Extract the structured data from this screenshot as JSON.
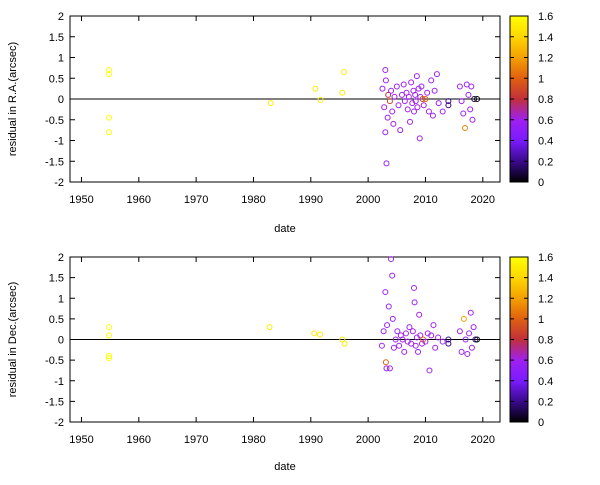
{
  "chart_data": [
    {
      "type": "scatter",
      "title": "",
      "xlabel": "date",
      "ylabel": "residual in R.A.(arcsec)",
      "xlim": [
        1948,
        2023
      ],
      "ylim": [
        -2,
        2
      ],
      "xticks": [
        "1950",
        "1960",
        "1970",
        "1980",
        "1990",
        "2000",
        "2010",
        "2020"
      ],
      "yticks": [
        "2",
        "1.5",
        "1",
        "0.5",
        "0",
        "-0.5",
        "-1",
        "-1.5",
        "-2"
      ],
      "zero_line": true,
      "colorbar": {
        "range": [
          0,
          1.6
        ],
        "ticks": [
          "1.6",
          "1.4",
          "1.2",
          "1",
          "0.8",
          "0.6",
          "0.4",
          "0.2",
          "0"
        ],
        "colormap": [
          "#000000",
          "#3a0a8c",
          "#7a1bff",
          "#a020f0",
          "#c0303a",
          "#e06010",
          "#f4a000",
          "#ffd700",
          "#ffff00"
        ]
      },
      "points": [
        {
          "x": 1954.8,
          "y": 0.7,
          "c": 1.6
        },
        {
          "x": 1954.8,
          "y": 0.6,
          "c": 1.6
        },
        {
          "x": 1954.8,
          "y": -0.45,
          "c": 1.6
        },
        {
          "x": 1954.8,
          "y": -0.8,
          "c": 1.6
        },
        {
          "x": 1983.0,
          "y": -0.1,
          "c": 1.5
        },
        {
          "x": 1990.8,
          "y": 0.25,
          "c": 1.5
        },
        {
          "x": 1991.7,
          "y": -0.02,
          "c": 1.5
        },
        {
          "x": 1995.8,
          "y": 0.65,
          "c": 1.5
        },
        {
          "x": 1995.5,
          "y": 0.15,
          "c": 1.5
        },
        {
          "x": 2002.5,
          "y": 0.25,
          "c": 0.6
        },
        {
          "x": 2002.8,
          "y": -0.2,
          "c": 0.6
        },
        {
          "x": 2003.0,
          "y": 0.7,
          "c": 0.6
        },
        {
          "x": 2003.1,
          "y": 0.45,
          "c": 0.6
        },
        {
          "x": 2003.0,
          "y": -0.8,
          "c": 0.6
        },
        {
          "x": 2003.2,
          "y": -1.55,
          "c": 0.6
        },
        {
          "x": 2003.4,
          "y": -0.45,
          "c": 0.6
        },
        {
          "x": 2003.5,
          "y": 0.1,
          "c": 0.8
        },
        {
          "x": 2003.8,
          "y": -0.05,
          "c": 0.9
        },
        {
          "x": 2004.0,
          "y": 0.2,
          "c": 0.6
        },
        {
          "x": 2004.2,
          "y": -0.3,
          "c": 0.6
        },
        {
          "x": 2004.4,
          "y": -0.6,
          "c": 0.6
        },
        {
          "x": 2004.6,
          "y": 0.05,
          "c": 0.6
        },
        {
          "x": 2005.0,
          "y": 0.3,
          "c": 0.6
        },
        {
          "x": 2005.3,
          "y": -0.15,
          "c": 0.6
        },
        {
          "x": 2005.6,
          "y": -0.75,
          "c": 0.6
        },
        {
          "x": 2005.9,
          "y": 0.1,
          "c": 0.6
        },
        {
          "x": 2006.2,
          "y": 0.35,
          "c": 0.6
        },
        {
          "x": 2006.4,
          "y": -0.05,
          "c": 0.6
        },
        {
          "x": 2006.7,
          "y": 0.15,
          "c": 0.6
        },
        {
          "x": 2006.9,
          "y": -0.25,
          "c": 0.6
        },
        {
          "x": 2007.1,
          "y": 0.05,
          "c": 0.6
        },
        {
          "x": 2007.3,
          "y": -0.55,
          "c": 0.6
        },
        {
          "x": 2007.5,
          "y": 0.4,
          "c": 0.6
        },
        {
          "x": 2007.7,
          "y": -0.1,
          "c": 0.6
        },
        {
          "x": 2007.9,
          "y": 0.2,
          "c": 0.6
        },
        {
          "x": 2008.0,
          "y": -0.3,
          "c": 0.6
        },
        {
          "x": 2008.2,
          "y": 0.1,
          "c": 0.6
        },
        {
          "x": 2008.3,
          "y": -0.05,
          "c": 0.6
        },
        {
          "x": 2008.5,
          "y": 0.55,
          "c": 0.6
        },
        {
          "x": 2008.6,
          "y": -0.2,
          "c": 0.6
        },
        {
          "x": 2008.8,
          "y": 0.25,
          "c": 0.6
        },
        {
          "x": 2009.0,
          "y": -0.95,
          "c": 0.6
        },
        {
          "x": 2009.1,
          "y": 0.05,
          "c": 0.6
        },
        {
          "x": 2009.3,
          "y": 0.3,
          "c": 0.6
        },
        {
          "x": 2009.5,
          "y": 0.0,
          "c": 0.9
        },
        {
          "x": 2009.7,
          "y": -0.15,
          "c": 0.6
        },
        {
          "x": 2010.0,
          "y": 0.0,
          "c": 1.0
        },
        {
          "x": 2010.3,
          "y": 0.15,
          "c": 0.6
        },
        {
          "x": 2010.6,
          "y": -0.3,
          "c": 0.6
        },
        {
          "x": 2011.0,
          "y": 0.45,
          "c": 0.6
        },
        {
          "x": 2011.3,
          "y": -0.4,
          "c": 0.6
        },
        {
          "x": 2011.6,
          "y": 0.2,
          "c": 0.6
        },
        {
          "x": 2012.0,
          "y": 0.6,
          "c": 0.6
        },
        {
          "x": 2012.3,
          "y": -0.1,
          "c": 0.6
        },
        {
          "x": 2013.0,
          "y": -0.3,
          "c": 0.6
        },
        {
          "x": 2014.0,
          "y": -0.05,
          "c": 0.2
        },
        {
          "x": 2014.0,
          "y": -0.15,
          "c": 0.2
        },
        {
          "x": 2016.0,
          "y": 0.3,
          "c": 0.6
        },
        {
          "x": 2016.3,
          "y": -0.05,
          "c": 0.6
        },
        {
          "x": 2016.6,
          "y": -0.35,
          "c": 0.6
        },
        {
          "x": 2016.9,
          "y": -0.7,
          "c": 1.1
        },
        {
          "x": 2017.2,
          "y": 0.35,
          "c": 0.6
        },
        {
          "x": 2017.5,
          "y": 0.1,
          "c": 0.6
        },
        {
          "x": 2017.8,
          "y": -0.25,
          "c": 0.6
        },
        {
          "x": 2018.0,
          "y": 0.3,
          "c": 0.6
        },
        {
          "x": 2018.2,
          "y": -0.5,
          "c": 0.6
        },
        {
          "x": 2018.5,
          "y": 0.0,
          "c": 0.1
        },
        {
          "x": 2019.0,
          "y": 0.0,
          "c": 0.0
        }
      ]
    },
    {
      "type": "scatter",
      "title": "",
      "xlabel": "date",
      "ylabel": "residual in Dec.(arcsec)",
      "xlim": [
        1948,
        2023
      ],
      "ylim": [
        -2,
        2
      ],
      "xticks": [
        "1950",
        "1960",
        "1970",
        "1980",
        "1990",
        "2000",
        "2010",
        "2020"
      ],
      "yticks": [
        "2",
        "1.5",
        "1",
        "0.5",
        "0",
        "-0.5",
        "-1",
        "-1.5",
        "-2"
      ],
      "zero_line": true,
      "colorbar": {
        "range": [
          0,
          1.6
        ],
        "ticks": [
          "1.6",
          "1.4",
          "1.2",
          "1",
          "0.8",
          "0.6",
          "0.4",
          "0.2",
          "0"
        ],
        "colormap": [
          "#000000",
          "#3a0a8c",
          "#7a1bff",
          "#a020f0",
          "#c0303a",
          "#e06010",
          "#f4a000",
          "#ffd700",
          "#ffff00"
        ]
      },
      "points": [
        {
          "x": 1954.8,
          "y": 0.3,
          "c": 1.6
        },
        {
          "x": 1954.8,
          "y": 0.1,
          "c": 1.6
        },
        {
          "x": 1954.8,
          "y": -0.4,
          "c": 1.6
        },
        {
          "x": 1954.8,
          "y": -0.45,
          "c": 1.6
        },
        {
          "x": 1982.8,
          "y": 0.3,
          "c": 1.5
        },
        {
          "x": 1990.6,
          "y": 0.15,
          "c": 1.5
        },
        {
          "x": 1991.6,
          "y": 0.12,
          "c": 1.5
        },
        {
          "x": 1995.5,
          "y": 0.0,
          "c": 1.5
        },
        {
          "x": 1995.9,
          "y": -0.1,
          "c": 1.5
        },
        {
          "x": 2002.4,
          "y": -0.15,
          "c": 0.6
        },
        {
          "x": 2002.7,
          "y": 0.2,
          "c": 0.6
        },
        {
          "x": 2003.0,
          "y": 1.15,
          "c": 0.6
        },
        {
          "x": 2003.1,
          "y": -0.55,
          "c": 1.0
        },
        {
          "x": 2003.2,
          "y": -0.7,
          "c": 0.6
        },
        {
          "x": 2003.3,
          "y": 0.35,
          "c": 0.6
        },
        {
          "x": 2003.6,
          "y": 0.8,
          "c": 0.6
        },
        {
          "x": 2003.8,
          "y": -0.7,
          "c": 0.6
        },
        {
          "x": 2004.0,
          "y": 1.95,
          "c": 0.6
        },
        {
          "x": 2004.2,
          "y": 1.55,
          "c": 0.6
        },
        {
          "x": 2004.3,
          "y": 0.5,
          "c": 0.6
        },
        {
          "x": 2004.5,
          "y": -0.2,
          "c": 0.6
        },
        {
          "x": 2004.8,
          "y": 0.0,
          "c": 0.6
        },
        {
          "x": 2005.1,
          "y": 0.2,
          "c": 0.6
        },
        {
          "x": 2005.4,
          "y": -0.15,
          "c": 0.6
        },
        {
          "x": 2005.7,
          "y": 0.1,
          "c": 0.6
        },
        {
          "x": 2006.0,
          "y": 0.0,
          "c": 0.6
        },
        {
          "x": 2006.3,
          "y": -0.3,
          "c": 0.6
        },
        {
          "x": 2006.6,
          "y": 0.15,
          "c": 0.6
        },
        {
          "x": 2006.9,
          "y": -0.05,
          "c": 0.6
        },
        {
          "x": 2007.2,
          "y": 0.3,
          "c": 0.6
        },
        {
          "x": 2007.5,
          "y": -0.1,
          "c": 0.6
        },
        {
          "x": 2007.8,
          "y": 0.2,
          "c": 0.6
        },
        {
          "x": 2008.0,
          "y": 1.25,
          "c": 0.6
        },
        {
          "x": 2008.1,
          "y": 0.9,
          "c": 0.6
        },
        {
          "x": 2008.3,
          "y": -0.15,
          "c": 0.6
        },
        {
          "x": 2008.5,
          "y": 0.05,
          "c": 0.6
        },
        {
          "x": 2008.7,
          "y": -0.3,
          "c": 0.6
        },
        {
          "x": 2008.9,
          "y": 0.6,
          "c": 0.6
        },
        {
          "x": 2009.1,
          "y": 0.1,
          "c": 0.6
        },
        {
          "x": 2009.4,
          "y": -0.1,
          "c": 0.6
        },
        {
          "x": 2009.6,
          "y": 0.0,
          "c": 1.0
        },
        {
          "x": 2010.0,
          "y": -0.05,
          "c": 0.6
        },
        {
          "x": 2010.4,
          "y": 0.15,
          "c": 0.6
        },
        {
          "x": 2010.7,
          "y": -0.75,
          "c": 0.6
        },
        {
          "x": 2011.0,
          "y": 0.1,
          "c": 0.6
        },
        {
          "x": 2011.4,
          "y": 0.35,
          "c": 0.6
        },
        {
          "x": 2011.7,
          "y": -0.2,
          "c": 0.6
        },
        {
          "x": 2012.2,
          "y": 0.05,
          "c": 0.6
        },
        {
          "x": 2013.0,
          "y": -0.05,
          "c": 0.6
        },
        {
          "x": 2014.0,
          "y": 0.0,
          "c": 0.2
        },
        {
          "x": 2014.0,
          "y": -0.1,
          "c": 0.2
        },
        {
          "x": 2016.0,
          "y": 0.2,
          "c": 0.6
        },
        {
          "x": 2016.3,
          "y": -0.3,
          "c": 0.6
        },
        {
          "x": 2016.7,
          "y": 0.5,
          "c": 1.2
        },
        {
          "x": 2017.0,
          "y": 0.0,
          "c": 0.6
        },
        {
          "x": 2017.3,
          "y": -0.35,
          "c": 0.6
        },
        {
          "x": 2017.6,
          "y": 0.15,
          "c": 0.6
        },
        {
          "x": 2017.9,
          "y": 0.65,
          "c": 0.6
        },
        {
          "x": 2018.1,
          "y": -0.2,
          "c": 0.6
        },
        {
          "x": 2018.4,
          "y": 0.3,
          "c": 0.6
        },
        {
          "x": 2018.7,
          "y": 0.0,
          "c": 0.2
        },
        {
          "x": 2019.0,
          "y": 0.0,
          "c": 0.0
        }
      ]
    }
  ]
}
